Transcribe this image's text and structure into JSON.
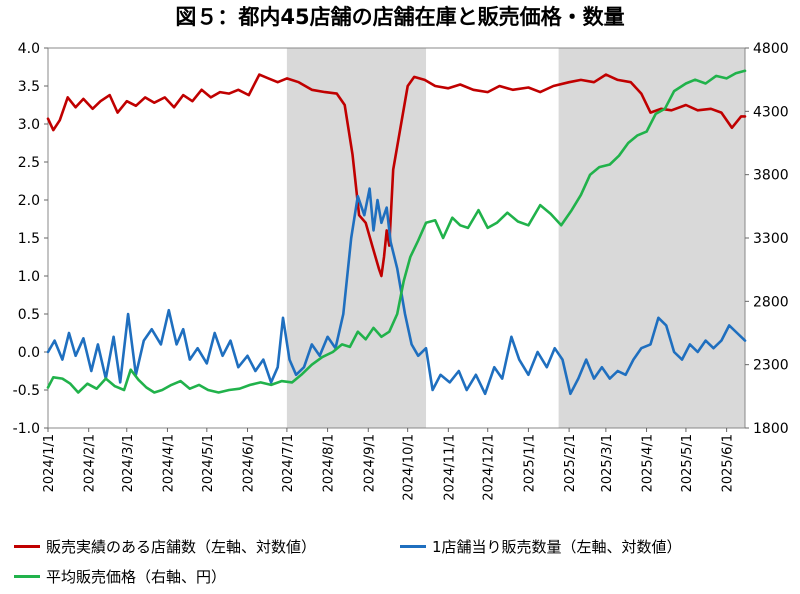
{
  "chart_data": {
    "type": "line",
    "title": "図５：都内45店舗の店舗在庫と販売価格・数量",
    "x_ticks": [
      "2024/1/1",
      "2024/2/1",
      "2024/3/1",
      "2024/4/1",
      "2024/5/1",
      "2024/6/1",
      "2024/7/1",
      "2024/8/1",
      "2024/9/1",
      "2024/10/1",
      "2024/11/1",
      "2024/12/1",
      "2025/1/1",
      "2025/2/1",
      "2025/3/1",
      "2025/4/1",
      "2025/5/1",
      "2025/6/1"
    ],
    "y_left": {
      "ylim": [
        -1.0,
        4.0
      ],
      "ticks": [
        "-1.0",
        "-0.5",
        "0.0",
        "0.5",
        "1.0",
        "1.5",
        "2.0",
        "2.5",
        "3.0",
        "3.5",
        "4.0"
      ]
    },
    "y_right": {
      "ylim": [
        1800,
        4800
      ],
      "ticks": [
        "1800",
        "2300",
        "2800",
        "3300",
        "3800",
        "4300",
        "4800"
      ]
    },
    "shaded_periods": [
      [
        "2024/7/1",
        "2024/10/15"
      ],
      [
        "2025/1/24",
        "2025/6/15"
      ]
    ],
    "grid": false,
    "legend_position": "bottom",
    "series": [
      {
        "name": "販売実績のある店舗数（左軸、対数値）",
        "axis": "left",
        "color": "#c00000",
        "points": [
          [
            "2024-01-01",
            3.07
          ],
          [
            "2024-01-05",
            2.92
          ],
          [
            "2024-01-10",
            3.05
          ],
          [
            "2024-01-16",
            3.35
          ],
          [
            "2024-01-22",
            3.22
          ],
          [
            "2024-01-28",
            3.33
          ],
          [
            "2024-02-04",
            3.2
          ],
          [
            "2024-02-10",
            3.3
          ],
          [
            "2024-02-17",
            3.38
          ],
          [
            "2024-02-23",
            3.15
          ],
          [
            "2024-03-01",
            3.3
          ],
          [
            "2024-03-08",
            3.24
          ],
          [
            "2024-03-15",
            3.35
          ],
          [
            "2024-03-22",
            3.28
          ],
          [
            "2024-03-30",
            3.35
          ],
          [
            "2024-04-06",
            3.22
          ],
          [
            "2024-04-13",
            3.38
          ],
          [
            "2024-04-20",
            3.3
          ],
          [
            "2024-04-27",
            3.45
          ],
          [
            "2024-05-04",
            3.35
          ],
          [
            "2024-05-11",
            3.42
          ],
          [
            "2024-05-18",
            3.4
          ],
          [
            "2024-05-25",
            3.45
          ],
          [
            "2024-06-02",
            3.38
          ],
          [
            "2024-06-10",
            3.65
          ],
          [
            "2024-06-17",
            3.6
          ],
          [
            "2024-06-24",
            3.55
          ],
          [
            "2024-07-01",
            3.6
          ],
          [
            "2024-07-10",
            3.55
          ],
          [
            "2024-07-20",
            3.45
          ],
          [
            "2024-07-30",
            3.42
          ],
          [
            "2024-08-08",
            3.4
          ],
          [
            "2024-08-14",
            3.25
          ],
          [
            "2024-08-20",
            2.6
          ],
          [
            "2024-08-25",
            1.8
          ],
          [
            "2024-08-30",
            1.7
          ],
          [
            "2024-09-04",
            1.4
          ],
          [
            "2024-09-09",
            1.1
          ],
          [
            "2024-09-11",
            1.0
          ],
          [
            "2024-09-13",
            1.25
          ],
          [
            "2024-09-15",
            1.6
          ],
          [
            "2024-09-17",
            1.4
          ],
          [
            "2024-09-20",
            2.4
          ],
          [
            "2024-09-26",
            3.0
          ],
          [
            "2024-10-01",
            3.5
          ],
          [
            "2024-10-06",
            3.62
          ],
          [
            "2024-10-14",
            3.58
          ],
          [
            "2024-10-22",
            3.5
          ],
          [
            "2024-11-01",
            3.47
          ],
          [
            "2024-11-10",
            3.52
          ],
          [
            "2024-11-20",
            3.45
          ],
          [
            "2024-12-01",
            3.42
          ],
          [
            "2024-12-10",
            3.5
          ],
          [
            "2024-12-20",
            3.45
          ],
          [
            "2025-01-01",
            3.48
          ],
          [
            "2025-01-10",
            3.42
          ],
          [
            "2025-01-20",
            3.5
          ],
          [
            "2025-02-01",
            3.55
          ],
          [
            "2025-02-10",
            3.58
          ],
          [
            "2025-02-20",
            3.55
          ],
          [
            "2025-03-01",
            3.65
          ],
          [
            "2025-03-10",
            3.58
          ],
          [
            "2025-03-20",
            3.55
          ],
          [
            "2025-03-28",
            3.4
          ],
          [
            "2025-04-04",
            3.15
          ],
          [
            "2025-04-12",
            3.2
          ],
          [
            "2025-04-20",
            3.18
          ],
          [
            "2025-05-01",
            3.25
          ],
          [
            "2025-05-10",
            3.18
          ],
          [
            "2025-05-20",
            3.2
          ],
          [
            "2025-05-28",
            3.15
          ],
          [
            "2025-06-05",
            2.95
          ],
          [
            "2025-06-12",
            3.1
          ],
          [
            "2025-06-15",
            3.1
          ]
        ]
      },
      {
        "name": "1店舗当り販売数量（左軸、対数値）",
        "axis": "left",
        "color": "#1f6fbf",
        "points": [
          [
            "2024-01-01",
            0.0
          ],
          [
            "2024-01-06",
            0.15
          ],
          [
            "2024-01-12",
            -0.1
          ],
          [
            "2024-01-17",
            0.25
          ],
          [
            "2024-01-22",
            -0.05
          ],
          [
            "2024-01-28",
            0.18
          ],
          [
            "2024-02-03",
            -0.25
          ],
          [
            "2024-02-08",
            0.1
          ],
          [
            "2024-02-14",
            -0.35
          ],
          [
            "2024-02-20",
            0.2
          ],
          [
            "2024-02-25",
            -0.4
          ],
          [
            "2024-03-02",
            0.5
          ],
          [
            "2024-03-08",
            -0.3
          ],
          [
            "2024-03-14",
            0.15
          ],
          [
            "2024-03-20",
            0.3
          ],
          [
            "2024-03-27",
            0.1
          ],
          [
            "2024-04-02",
            0.55
          ],
          [
            "2024-04-08",
            0.1
          ],
          [
            "2024-04-13",
            0.3
          ],
          [
            "2024-04-18",
            -0.1
          ],
          [
            "2024-04-24",
            0.05
          ],
          [
            "2024-05-01",
            -0.15
          ],
          [
            "2024-05-07",
            0.25
          ],
          [
            "2024-05-13",
            -0.05
          ],
          [
            "2024-05-19",
            0.15
          ],
          [
            "2024-05-25",
            -0.2
          ],
          [
            "2024-06-01",
            -0.05
          ],
          [
            "2024-06-07",
            -0.25
          ],
          [
            "2024-06-13",
            -0.1
          ],
          [
            "2024-06-19",
            -0.4
          ],
          [
            "2024-06-24",
            -0.2
          ],
          [
            "2024-06-28",
            0.45
          ],
          [
            "2024-07-03",
            -0.1
          ],
          [
            "2024-07-08",
            -0.3
          ],
          [
            "2024-07-14",
            -0.2
          ],
          [
            "2024-07-20",
            0.1
          ],
          [
            "2024-07-26",
            -0.05
          ],
          [
            "2024-08-01",
            0.2
          ],
          [
            "2024-08-07",
            0.05
          ],
          [
            "2024-08-13",
            0.5
          ],
          [
            "2024-08-19",
            1.5
          ],
          [
            "2024-08-24",
            2.05
          ],
          [
            "2024-08-29",
            1.8
          ],
          [
            "2024-09-02",
            2.15
          ],
          [
            "2024-09-05",
            1.6
          ],
          [
            "2024-09-08",
            2.0
          ],
          [
            "2024-09-11",
            1.7
          ],
          [
            "2024-09-15",
            1.9
          ],
          [
            "2024-09-18",
            1.45
          ],
          [
            "2024-09-23",
            1.1
          ],
          [
            "2024-09-29",
            0.5
          ],
          [
            "2024-10-04",
            0.1
          ],
          [
            "2024-10-09",
            -0.05
          ],
          [
            "2024-10-15",
            0.05
          ],
          [
            "2024-10-20",
            -0.5
          ],
          [
            "2024-10-26",
            -0.3
          ],
          [
            "2024-11-02",
            -0.4
          ],
          [
            "2024-11-09",
            -0.25
          ],
          [
            "2024-11-15",
            -0.5
          ],
          [
            "2024-11-22",
            -0.3
          ],
          [
            "2024-11-29",
            -0.55
          ],
          [
            "2024-12-06",
            -0.2
          ],
          [
            "2024-12-12",
            -0.35
          ],
          [
            "2024-12-19",
            0.2
          ],
          [
            "2024-12-25",
            -0.1
          ],
          [
            "2025-01-01",
            -0.3
          ],
          [
            "2025-01-08",
            0.0
          ],
          [
            "2025-01-15",
            -0.2
          ],
          [
            "2025-01-21",
            0.05
          ],
          [
            "2025-01-27",
            -0.1
          ],
          [
            "2025-02-02",
            -0.55
          ],
          [
            "2025-02-08",
            -0.35
          ],
          [
            "2025-02-14",
            -0.1
          ],
          [
            "2025-02-20",
            -0.35
          ],
          [
            "2025-02-26",
            -0.2
          ],
          [
            "2025-03-04",
            -0.35
          ],
          [
            "2025-03-10",
            -0.25
          ],
          [
            "2025-03-16",
            -0.3
          ],
          [
            "2025-03-22",
            -0.1
          ],
          [
            "2025-03-28",
            0.05
          ],
          [
            "2025-04-04",
            0.1
          ],
          [
            "2025-04-10",
            0.45
          ],
          [
            "2025-04-16",
            0.35
          ],
          [
            "2025-04-22",
            0.0
          ],
          [
            "2025-04-28",
            -0.1
          ],
          [
            "2025-05-04",
            0.1
          ],
          [
            "2025-05-10",
            0.0
          ],
          [
            "2025-05-16",
            0.15
          ],
          [
            "2025-05-22",
            0.05
          ],
          [
            "2025-05-28",
            0.15
          ],
          [
            "2025-06-03",
            0.35
          ],
          [
            "2025-06-09",
            0.25
          ],
          [
            "2025-06-15",
            0.15
          ]
        ]
      },
      {
        "name": "平均販売価格（右軸、円）",
        "axis": "right",
        "color": "#21b24b",
        "points": [
          [
            "2024-01-01",
            2120
          ],
          [
            "2024-01-05",
            2200
          ],
          [
            "2024-01-12",
            2190
          ],
          [
            "2024-01-18",
            2150
          ],
          [
            "2024-01-24",
            2080
          ],
          [
            "2024-01-31",
            2150
          ],
          [
            "2024-02-07",
            2110
          ],
          [
            "2024-02-14",
            2190
          ],
          [
            "2024-02-21",
            2130
          ],
          [
            "2024-02-28",
            2100
          ],
          [
            "2024-03-04",
            2260
          ],
          [
            "2024-03-10",
            2180
          ],
          [
            "2024-03-16",
            2120
          ],
          [
            "2024-03-22",
            2080
          ],
          [
            "2024-03-28",
            2100
          ],
          [
            "2024-04-04",
            2140
          ],
          [
            "2024-04-11",
            2170
          ],
          [
            "2024-04-18",
            2110
          ],
          [
            "2024-04-25",
            2140
          ],
          [
            "2024-05-02",
            2100
          ],
          [
            "2024-05-10",
            2080
          ],
          [
            "2024-05-18",
            2100
          ],
          [
            "2024-05-26",
            2110
          ],
          [
            "2024-06-03",
            2140
          ],
          [
            "2024-06-11",
            2160
          ],
          [
            "2024-06-19",
            2140
          ],
          [
            "2024-06-27",
            2170
          ],
          [
            "2024-07-05",
            2160
          ],
          [
            "2024-07-12",
            2220
          ],
          [
            "2024-07-20",
            2300
          ],
          [
            "2024-07-28",
            2360
          ],
          [
            "2024-08-05",
            2400
          ],
          [
            "2024-08-12",
            2460
          ],
          [
            "2024-08-18",
            2440
          ],
          [
            "2024-08-24",
            2560
          ],
          [
            "2024-08-30",
            2500
          ],
          [
            "2024-09-05",
            2590
          ],
          [
            "2024-09-11",
            2520
          ],
          [
            "2024-09-17",
            2560
          ],
          [
            "2024-09-23",
            2700
          ],
          [
            "2024-09-28",
            2960
          ],
          [
            "2024-10-03",
            3150
          ],
          [
            "2024-10-09",
            3280
          ],
          [
            "2024-10-15",
            3420
          ],
          [
            "2024-10-22",
            3440
          ],
          [
            "2024-10-28",
            3300
          ],
          [
            "2024-11-04",
            3460
          ],
          [
            "2024-11-10",
            3400
          ],
          [
            "2024-11-16",
            3380
          ],
          [
            "2024-11-24",
            3520
          ],
          [
            "2024-12-01",
            3380
          ],
          [
            "2024-12-08",
            3420
          ],
          [
            "2024-12-16",
            3500
          ],
          [
            "2024-12-24",
            3430
          ],
          [
            "2025-01-01",
            3400
          ],
          [
            "2025-01-10",
            3560
          ],
          [
            "2025-01-18",
            3490
          ],
          [
            "2025-01-26",
            3400
          ],
          [
            "2025-02-03",
            3520
          ],
          [
            "2025-02-10",
            3640
          ],
          [
            "2025-02-17",
            3800
          ],
          [
            "2025-02-24",
            3860
          ],
          [
            "2025-03-04",
            3880
          ],
          [
            "2025-03-11",
            3950
          ],
          [
            "2025-03-18",
            4050
          ],
          [
            "2025-03-25",
            4110
          ],
          [
            "2025-04-01",
            4140
          ],
          [
            "2025-04-08",
            4280
          ],
          [
            "2025-04-15",
            4320
          ],
          [
            "2025-04-22",
            4460
          ],
          [
            "2025-05-01",
            4520
          ],
          [
            "2025-05-08",
            4550
          ],
          [
            "2025-05-16",
            4520
          ],
          [
            "2025-05-24",
            4580
          ],
          [
            "2025-06-01",
            4560
          ],
          [
            "2025-06-08",
            4600
          ],
          [
            "2025-06-15",
            4620
          ]
        ]
      }
    ]
  },
  "legend": [
    {
      "label": "販売実績のある店舗数（左軸、対数値）",
      "color": "#c00000"
    },
    {
      "label": "1店舗当り販売数量（左軸、対数値）",
      "color": "#1f6fbf"
    },
    {
      "label": "平均販売価格（右軸、円）",
      "color": "#21b24b"
    }
  ]
}
